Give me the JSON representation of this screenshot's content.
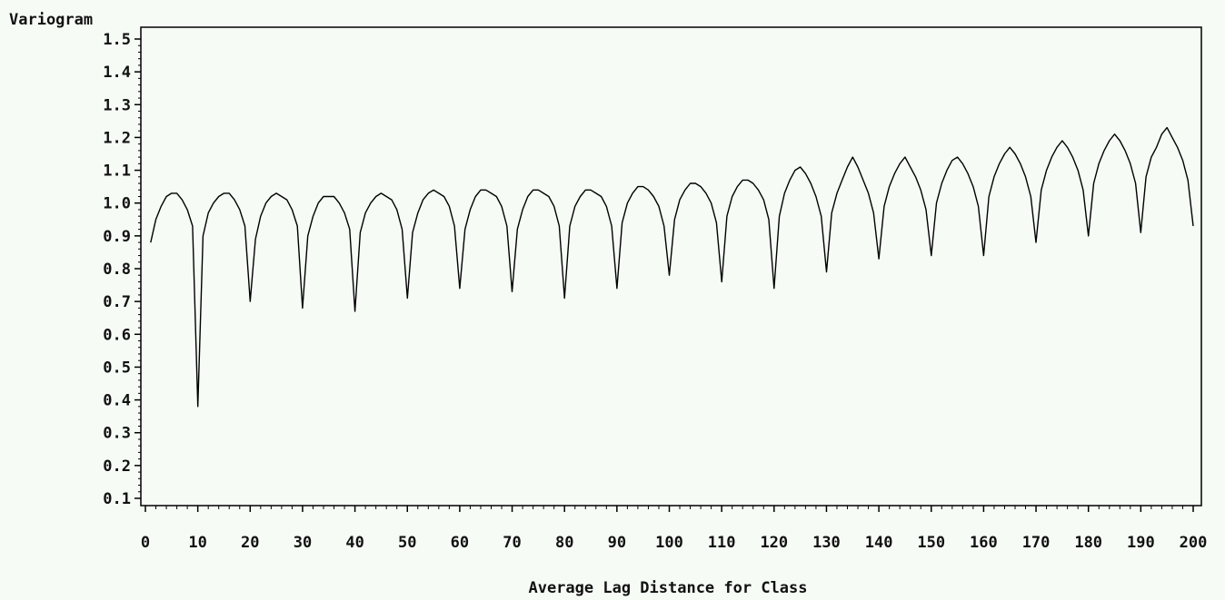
{
  "chart_data": {
    "type": "line",
    "title": "",
    "ylabel": "Variogram",
    "xlabel": "Average Lag Distance for Class",
    "xlim": [
      0,
      200
    ],
    "ylim": [
      0.1,
      1.5
    ],
    "x_ticks": [
      "0",
      "10",
      "20",
      "30",
      "40",
      "50",
      "60",
      "70",
      "80",
      "90",
      "100",
      "110",
      "120",
      "130",
      "140",
      "150",
      "160",
      "170",
      "180",
      "190",
      "200"
    ],
    "y_ticks": [
      "0.1",
      "0.2",
      "0.3",
      "0.4",
      "0.5",
      "0.6",
      "0.7",
      "0.8",
      "0.9",
      "1.0",
      "1.1",
      "1.2",
      "1.3",
      "1.4",
      "1.5"
    ],
    "grid": false,
    "line_color": "#000000",
    "series": [
      {
        "x": [
          1,
          2,
          3,
          4,
          5,
          6,
          7,
          8,
          9,
          10,
          11,
          12,
          13,
          14,
          15,
          16,
          17,
          18,
          19,
          20,
          21,
          22,
          23,
          24,
          25,
          26,
          27,
          28,
          29,
          30,
          31,
          32,
          33,
          34,
          35,
          36,
          37,
          38,
          39,
          40,
          41,
          42,
          43,
          44,
          45,
          46,
          47,
          48,
          49,
          50,
          51,
          52,
          53,
          54,
          55,
          56,
          57,
          58,
          59,
          60,
          61,
          62,
          63,
          64,
          65,
          66,
          67,
          68,
          69,
          70,
          71,
          72,
          73,
          74,
          75,
          76,
          77,
          78,
          79,
          80,
          81,
          82,
          83,
          84,
          85,
          86,
          87,
          88,
          89,
          90,
          91,
          92,
          93,
          94,
          95,
          96,
          97,
          98,
          99,
          100,
          101,
          102,
          103,
          104,
          105,
          106,
          107,
          108,
          109,
          110,
          111,
          112,
          113,
          114,
          115,
          116,
          117,
          118,
          119,
          120,
          121,
          122,
          123,
          124,
          125,
          126,
          127,
          128,
          129,
          130,
          131,
          132,
          133,
          134,
          135,
          136,
          137,
          138,
          139,
          140,
          141,
          142,
          143,
          144,
          145,
          146,
          147,
          148,
          149,
          150,
          151,
          152,
          153,
          154,
          155,
          156,
          157,
          158,
          159,
          160,
          161,
          162,
          163,
          164,
          165,
          166,
          167,
          168,
          169,
          170,
          171,
          172,
          173,
          174,
          175,
          176,
          177,
          178,
          179,
          180,
          181,
          182,
          183,
          184,
          185,
          186,
          187,
          188,
          189,
          190,
          191,
          192,
          193,
          194,
          195,
          196,
          197,
          198,
          199,
          200
        ],
        "y": [
          0.88,
          0.95,
          0.99,
          1.02,
          1.03,
          1.03,
          1.01,
          0.98,
          0.93,
          0.38,
          0.9,
          0.97,
          1.0,
          1.02,
          1.03,
          1.03,
          1.01,
          0.98,
          0.93,
          0.7,
          0.89,
          0.96,
          1.0,
          1.02,
          1.03,
          1.02,
          1.01,
          0.98,
          0.93,
          0.68,
          0.9,
          0.96,
          1.0,
          1.02,
          1.02,
          1.02,
          1.0,
          0.97,
          0.92,
          0.67,
          0.91,
          0.97,
          1.0,
          1.02,
          1.03,
          1.02,
          1.01,
          0.98,
          0.92,
          0.71,
          0.91,
          0.97,
          1.01,
          1.03,
          1.04,
          1.03,
          1.02,
          0.99,
          0.93,
          0.74,
          0.92,
          0.98,
          1.02,
          1.04,
          1.04,
          1.03,
          1.02,
          0.99,
          0.93,
          0.73,
          0.92,
          0.98,
          1.02,
          1.04,
          1.04,
          1.03,
          1.02,
          0.99,
          0.93,
          0.71,
          0.93,
          0.99,
          1.02,
          1.04,
          1.04,
          1.03,
          1.02,
          0.99,
          0.93,
          0.74,
          0.94,
          1.0,
          1.03,
          1.05,
          1.05,
          1.04,
          1.02,
          0.99,
          0.93,
          0.78,
          0.95,
          1.01,
          1.04,
          1.06,
          1.06,
          1.05,
          1.03,
          1.0,
          0.94,
          0.76,
          0.96,
          1.02,
          1.05,
          1.07,
          1.07,
          1.06,
          1.04,
          1.01,
          0.95,
          0.74,
          0.96,
          1.03,
          1.07,
          1.1,
          1.11,
          1.09,
          1.06,
          1.02,
          0.96,
          0.79,
          0.97,
          1.03,
          1.07,
          1.11,
          1.14,
          1.11,
          1.07,
          1.03,
          0.97,
          0.83,
          0.99,
          1.05,
          1.09,
          1.12,
          1.14,
          1.11,
          1.08,
          1.04,
          0.98,
          0.84,
          1.0,
          1.06,
          1.1,
          1.13,
          1.14,
          1.12,
          1.09,
          1.05,
          0.99,
          0.84,
          1.02,
          1.08,
          1.12,
          1.15,
          1.17,
          1.15,
          1.12,
          1.08,
          1.02,
          0.88,
          1.04,
          1.1,
          1.14,
          1.17,
          1.19,
          1.17,
          1.14,
          1.1,
          1.04,
          0.9,
          1.06,
          1.12,
          1.16,
          1.19,
          1.21,
          1.19,
          1.16,
          1.12,
          1.06,
          0.91,
          1.08,
          1.14,
          1.17,
          1.21,
          1.23,
          1.2,
          1.17,
          1.13,
          1.07,
          0.93
        ]
      }
    ]
  }
}
